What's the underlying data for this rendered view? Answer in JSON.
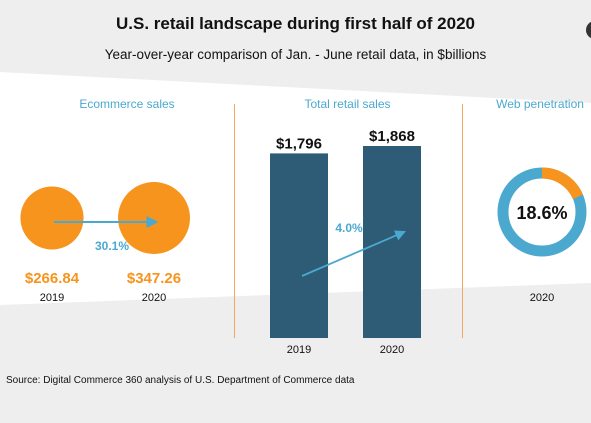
{
  "header": {
    "title": "U.S. retail landscape during first half of 2020",
    "subtitle": "Year-over-year comparison of Jan. - June retail data, in $billions"
  },
  "colors": {
    "orange": "#f7941d",
    "navy": "#2e5b75",
    "blue": "#4ba9cf",
    "background_band": "#eeeeee"
  },
  "chart_data": [
    {
      "type": "bubble",
      "title": "Ecommerce sales",
      "categories": [
        "2019",
        "2020"
      ],
      "values": [
        266.84,
        347.26
      ],
      "value_labels": [
        "$266.84",
        "$347.26"
      ],
      "growth_label": "30.1%"
    },
    {
      "type": "bar",
      "title": "Total retail sales",
      "categories": [
        "2019",
        "2020"
      ],
      "values": [
        1796,
        1868
      ],
      "value_labels": [
        "$1,796",
        "$1,868"
      ],
      "growth_label": "4.0%"
    },
    {
      "type": "pie",
      "title": "Web penetration",
      "category": "2020",
      "value": 18.6,
      "value_label": "18.6%"
    }
  ],
  "footer": {
    "source": "Source: Digital Commerce 360 analysis of U.S. Department of Commerce data"
  }
}
